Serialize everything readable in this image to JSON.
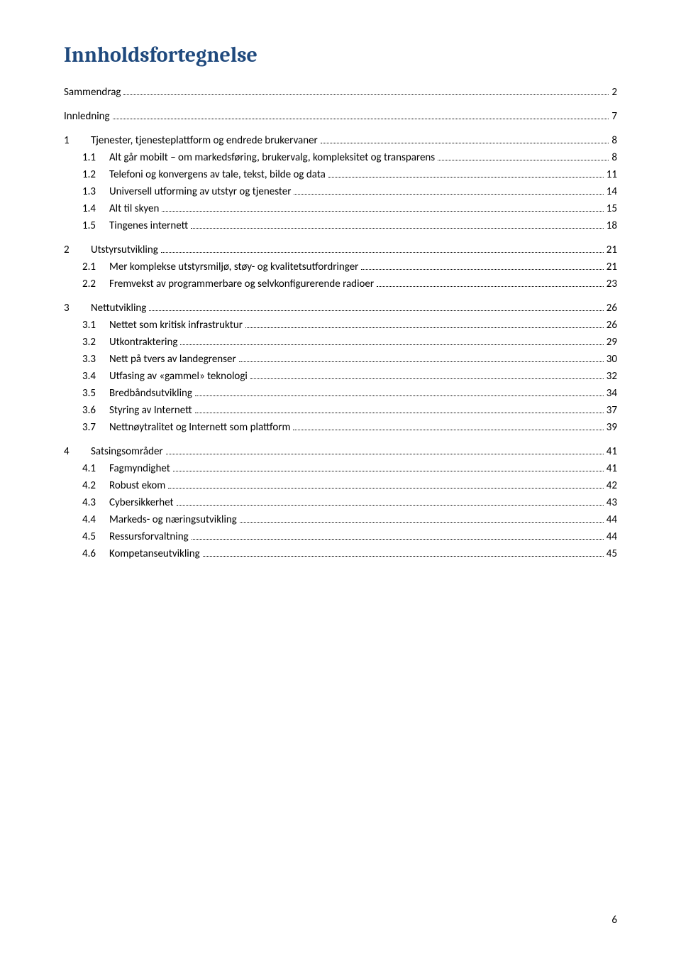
{
  "title": "Innholdsfortegnelse",
  "page_number": "6",
  "toc": [
    {
      "level": "top",
      "num": "",
      "label": "Sammendrag",
      "page": "2"
    },
    {
      "level": "top",
      "num": "",
      "label": "Innledning",
      "page": "7"
    },
    {
      "level": "h1",
      "num": "1",
      "label": "Tjenester, tjenesteplattform og endrede brukervaner",
      "page": "8"
    },
    {
      "level": "h2",
      "num": "1.1",
      "label": "Alt går mobilt – om markedsføring, brukervalg, kompleksitet og transparens",
      "page": "8"
    },
    {
      "level": "h2",
      "num": "1.2",
      "label": "Telefoni og konvergens av tale, tekst, bilde og data",
      "page": "11"
    },
    {
      "level": "h2",
      "num": "1.3",
      "label": "Universell utforming av utstyr og tjenester",
      "page": "14"
    },
    {
      "level": "h2",
      "num": "1.4",
      "label": "Alt til skyen",
      "page": "15"
    },
    {
      "level": "h2",
      "num": "1.5",
      "label": "Tingenes internett",
      "page": "18"
    },
    {
      "level": "h1",
      "num": "2",
      "label": "Utstyrsutvikling",
      "page": "21"
    },
    {
      "level": "h2",
      "num": "2.1",
      "label": "Mer komplekse utstyrsmiljø, støy- og kvalitetsutfordringer",
      "page": "21"
    },
    {
      "level": "h2",
      "num": "2.2",
      "label": "Fremvekst av programmerbare og selvkonfigurerende radioer",
      "page": "23"
    },
    {
      "level": "h1",
      "num": "3",
      "label": "Nettutvikling",
      "page": "26"
    },
    {
      "level": "h2",
      "num": "3.1",
      "label": "Nettet som kritisk infrastruktur",
      "page": "26"
    },
    {
      "level": "h2",
      "num": "3.2",
      "label": "Utkontraktering",
      "page": "29"
    },
    {
      "level": "h2",
      "num": "3.3",
      "label": "Nett på tvers av landegrenser",
      "page": "30"
    },
    {
      "level": "h2",
      "num": "3.4",
      "label": "Utfasing av «gammel» teknologi",
      "page": "32"
    },
    {
      "level": "h2",
      "num": "3.5",
      "label": "Bredbåndsutvikling",
      "page": "34"
    },
    {
      "level": "h2",
      "num": "3.6",
      "label": "Styring av Internett",
      "page": "37"
    },
    {
      "level": "h2",
      "num": "3.7",
      "label": "Nettnøytralitet og Internett som plattform",
      "page": "39"
    },
    {
      "level": "h1",
      "num": "4",
      "label": "Satsingsområder",
      "page": "41"
    },
    {
      "level": "h2",
      "num": "4.1",
      "label": "Fagmyndighet",
      "page": "41"
    },
    {
      "level": "h2",
      "num": "4.2",
      "label": "Robust ekom",
      "page": "42"
    },
    {
      "level": "h2",
      "num": "4.3",
      "label": "Cybersikkerhet",
      "page": "43"
    },
    {
      "level": "h2",
      "num": "4.4",
      "label": "Markeds- og næringsutvikling",
      "page": "44"
    },
    {
      "level": "h2",
      "num": "4.5",
      "label": "Ressursforvaltning",
      "page": "44"
    },
    {
      "level": "h2",
      "num": "4.6",
      "label": "Kompetanseutvikling",
      "page": "45"
    }
  ]
}
